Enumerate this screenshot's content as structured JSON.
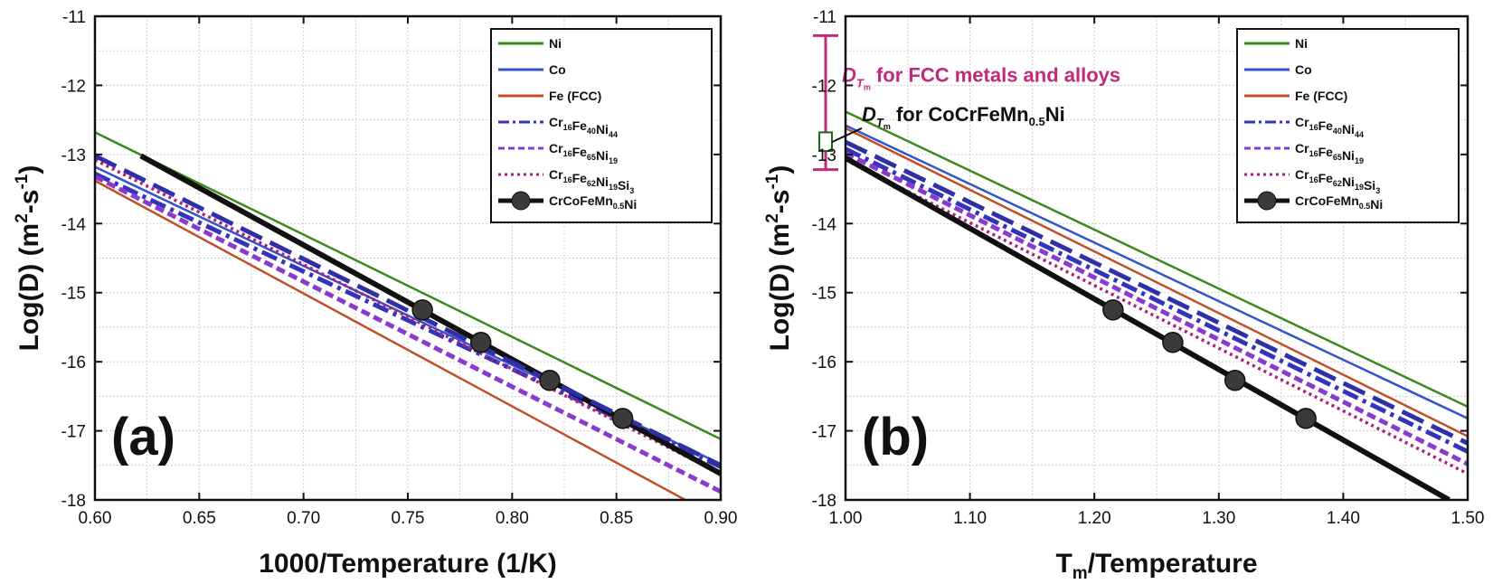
{
  "chart_data": [
    {
      "type": "line",
      "panel_label": "(a)",
      "xlabel": "1000/Temperature (1/K)",
      "ylabel_main": "Log(D) (m",
      "ylabel_sup1": "2",
      "ylabel_mid": "-s",
      "ylabel_sup2": "-1",
      "ylabel_end": ")",
      "xlim": [
        0.6,
        0.9
      ],
      "ylim": [
        -18,
        -11
      ],
      "xticks": [
        "0.60",
        "0.65",
        "0.70",
        "0.75",
        "0.80",
        "0.85",
        "0.90"
      ],
      "xtick_values": [
        0.6,
        0.65,
        0.7,
        0.75,
        0.8,
        0.85,
        0.9
      ],
      "yticks": [
        "-11",
        "-12",
        "-13",
        "-14",
        "-15",
        "-16",
        "-17",
        "-18"
      ],
      "ytick_values": [
        -11,
        -12,
        -13,
        -14,
        -15,
        -16,
        -17,
        -18
      ],
      "grid": true,
      "legend_position": "top-right",
      "series": [
        {
          "key": "ni",
          "name": "Ni",
          "color": "#3a8a1e",
          "style": "solid",
          "x": [
            0.6,
            0.9
          ],
          "y": [
            -12.68,
            -17.12
          ]
        },
        {
          "key": "co",
          "name": "Co",
          "color": "#3355cc",
          "style": "solid",
          "x": [
            0.6,
            0.9
          ],
          "y": [
            -13.18,
            -17.48
          ]
        },
        {
          "key": "fe",
          "name": "Fe (FCC)",
          "color": "#c0502a",
          "style": "solid",
          "x": [
            0.6,
            0.883
          ],
          "y": [
            -13.38,
            -18.0
          ]
        },
        {
          "key": "cr44",
          "name": "Cr16Fe40Ni44",
          "color": "#3333bb",
          "style": "dashdot",
          "x": [
            0.6,
            0.9
          ],
          "y": [
            -13.28,
            -17.52
          ]
        },
        {
          "key": "cr19",
          "name": "Cr16Fe65Ni19",
          "color": "#8a3acc",
          "style": "dashed",
          "x": [
            0.6,
            0.9
          ],
          "y": [
            -13.32,
            -17.88
          ]
        },
        {
          "key": "crsi",
          "name": "Cr16Fe62Ni19Si3",
          "color": "#b0207a",
          "style": "dotted",
          "x": [
            0.6,
            0.9
          ],
          "y": [
            -13.08,
            -17.62
          ]
        },
        {
          "key": "hea",
          "name": "CrCoFeMn0.5Ni",
          "color": "#111111",
          "style": "thick",
          "x": [
            0.622,
            0.9
          ],
          "y": [
            -13.02,
            -17.62
          ],
          "markers_x": [
            0.757,
            0.785,
            0.818,
            0.853
          ],
          "markers_y": [
            -15.25,
            -15.72,
            -16.27,
            -16.82
          ]
        },
        {
          "key": "blue_dash",
          "name": "",
          "color": "#2f2fa8",
          "style": "longdash",
          "x": [
            0.6,
            0.9
          ],
          "y": [
            -13.02,
            -17.5
          ]
        }
      ]
    },
    {
      "type": "line",
      "panel_label": "(b)",
      "xlabel_main": "T",
      "xlabel_sub": "m",
      "xlabel_end": "/Temperature",
      "ylabel_main": "Log(D) (m",
      "ylabel_sup1": "2",
      "ylabel_mid": "-s",
      "ylabel_sup2": "-1",
      "ylabel_end": ")",
      "xlim": [
        1.0,
        1.5
      ],
      "ylim": [
        -18,
        -11
      ],
      "xticks": [
        "1.00",
        "1.10",
        "1.20",
        "1.30",
        "1.40",
        "1.50"
      ],
      "xtick_values": [
        1.0,
        1.1,
        1.2,
        1.3,
        1.4,
        1.5
      ],
      "yticks": [
        "-11",
        "-12",
        "-13",
        "-14",
        "-15",
        "-16",
        "-17",
        "-18"
      ],
      "ytick_values": [
        -11,
        -12,
        -13,
        -14,
        -15,
        -16,
        -17,
        -18
      ],
      "grid": true,
      "legend_position": "top-right",
      "series": [
        {
          "key": "ni",
          "name": "Ni",
          "color": "#3a8a1e",
          "style": "solid",
          "x": [
            1.0,
            1.5
          ],
          "y": [
            -12.38,
            -16.65
          ]
        },
        {
          "key": "co",
          "name": "Co",
          "color": "#3355cc",
          "style": "solid",
          "x": [
            1.0,
            1.5
          ],
          "y": [
            -12.58,
            -16.82
          ]
        },
        {
          "key": "fe",
          "name": "Fe (FCC)",
          "color": "#c0502a",
          "style": "solid",
          "x": [
            1.0,
            1.5
          ],
          "y": [
            -12.62,
            -17.08
          ]
        },
        {
          "key": "cr44",
          "name": "Cr16Fe40Ni44",
          "color": "#3333bb",
          "style": "dashdot",
          "x": [
            1.0,
            1.5
          ],
          "y": [
            -12.92,
            -17.3
          ]
        },
        {
          "key": "cr19",
          "name": "Cr16Fe65Ni19",
          "color": "#8a3acc",
          "style": "dashed",
          "x": [
            1.0,
            1.5
          ],
          "y": [
            -12.98,
            -17.48
          ]
        },
        {
          "key": "crsi",
          "name": "Cr16Fe62Ni19Si3",
          "color": "#b0207a",
          "style": "dotted",
          "x": [
            1.0,
            1.5
          ],
          "y": [
            -13.08,
            -17.62
          ]
        },
        {
          "key": "hea",
          "name": "CrCoFeMn0.5Ni",
          "color": "#111111",
          "style": "thick",
          "x": [
            1.0,
            1.485
          ],
          "y": [
            -13.05,
            -18.0
          ],
          "markers_x": [
            1.215,
            1.263,
            1.313,
            1.37
          ],
          "markers_y": [
            -15.25,
            -15.72,
            -16.27,
            -16.82
          ]
        },
        {
          "key": "blue_dash",
          "name": "",
          "color": "#2f2fa8",
          "style": "longdash",
          "x": [
            1.0,
            1.5
          ],
          "y": [
            -12.82,
            -17.18
          ]
        }
      ],
      "annotation_range": {
        "y_top": -11.28,
        "y_bottom": -13.22,
        "color": "#c02a7a"
      },
      "annotation_box": {
        "y_top": -12.68,
        "y_bottom": -12.95
      },
      "annotation_main": {
        "D": "D",
        "sub": "T",
        "subsub": "m",
        "text": " for FCC metals and alloys"
      },
      "annotation_hea": {
        "D": "D",
        "sub": "T",
        "subsub": "m",
        "text": " for CoCrFeMn",
        "text_sub": "0.5",
        "text_end": "Ni"
      }
    }
  ],
  "legend": [
    {
      "key": "ni",
      "label": "Ni",
      "sub_parts": []
    },
    {
      "key": "co",
      "label": "Co",
      "sub_parts": []
    },
    {
      "key": "fe",
      "label": "Fe (FCC)",
      "sub_parts": []
    },
    {
      "key": "cr44",
      "label": "",
      "sub_parts": [
        [
          "Cr",
          "16"
        ],
        [
          "Fe",
          "40"
        ],
        [
          "Ni",
          "44"
        ]
      ]
    },
    {
      "key": "cr19",
      "label": "",
      "sub_parts": [
        [
          "Cr",
          "16"
        ],
        [
          "Fe",
          "65"
        ],
        [
          "Ni",
          "19"
        ]
      ]
    },
    {
      "key": "crsi",
      "label": "",
      "sub_parts": [
        [
          "Cr",
          "16"
        ],
        [
          "Fe",
          "62"
        ],
        [
          "Ni",
          "19"
        ],
        [
          "Si",
          "3"
        ]
      ]
    },
    {
      "key": "hea",
      "label": "",
      "sub_parts": [
        [
          "CrCoFeMn",
          "0.5"
        ],
        [
          "Ni",
          ""
        ]
      ]
    }
  ]
}
